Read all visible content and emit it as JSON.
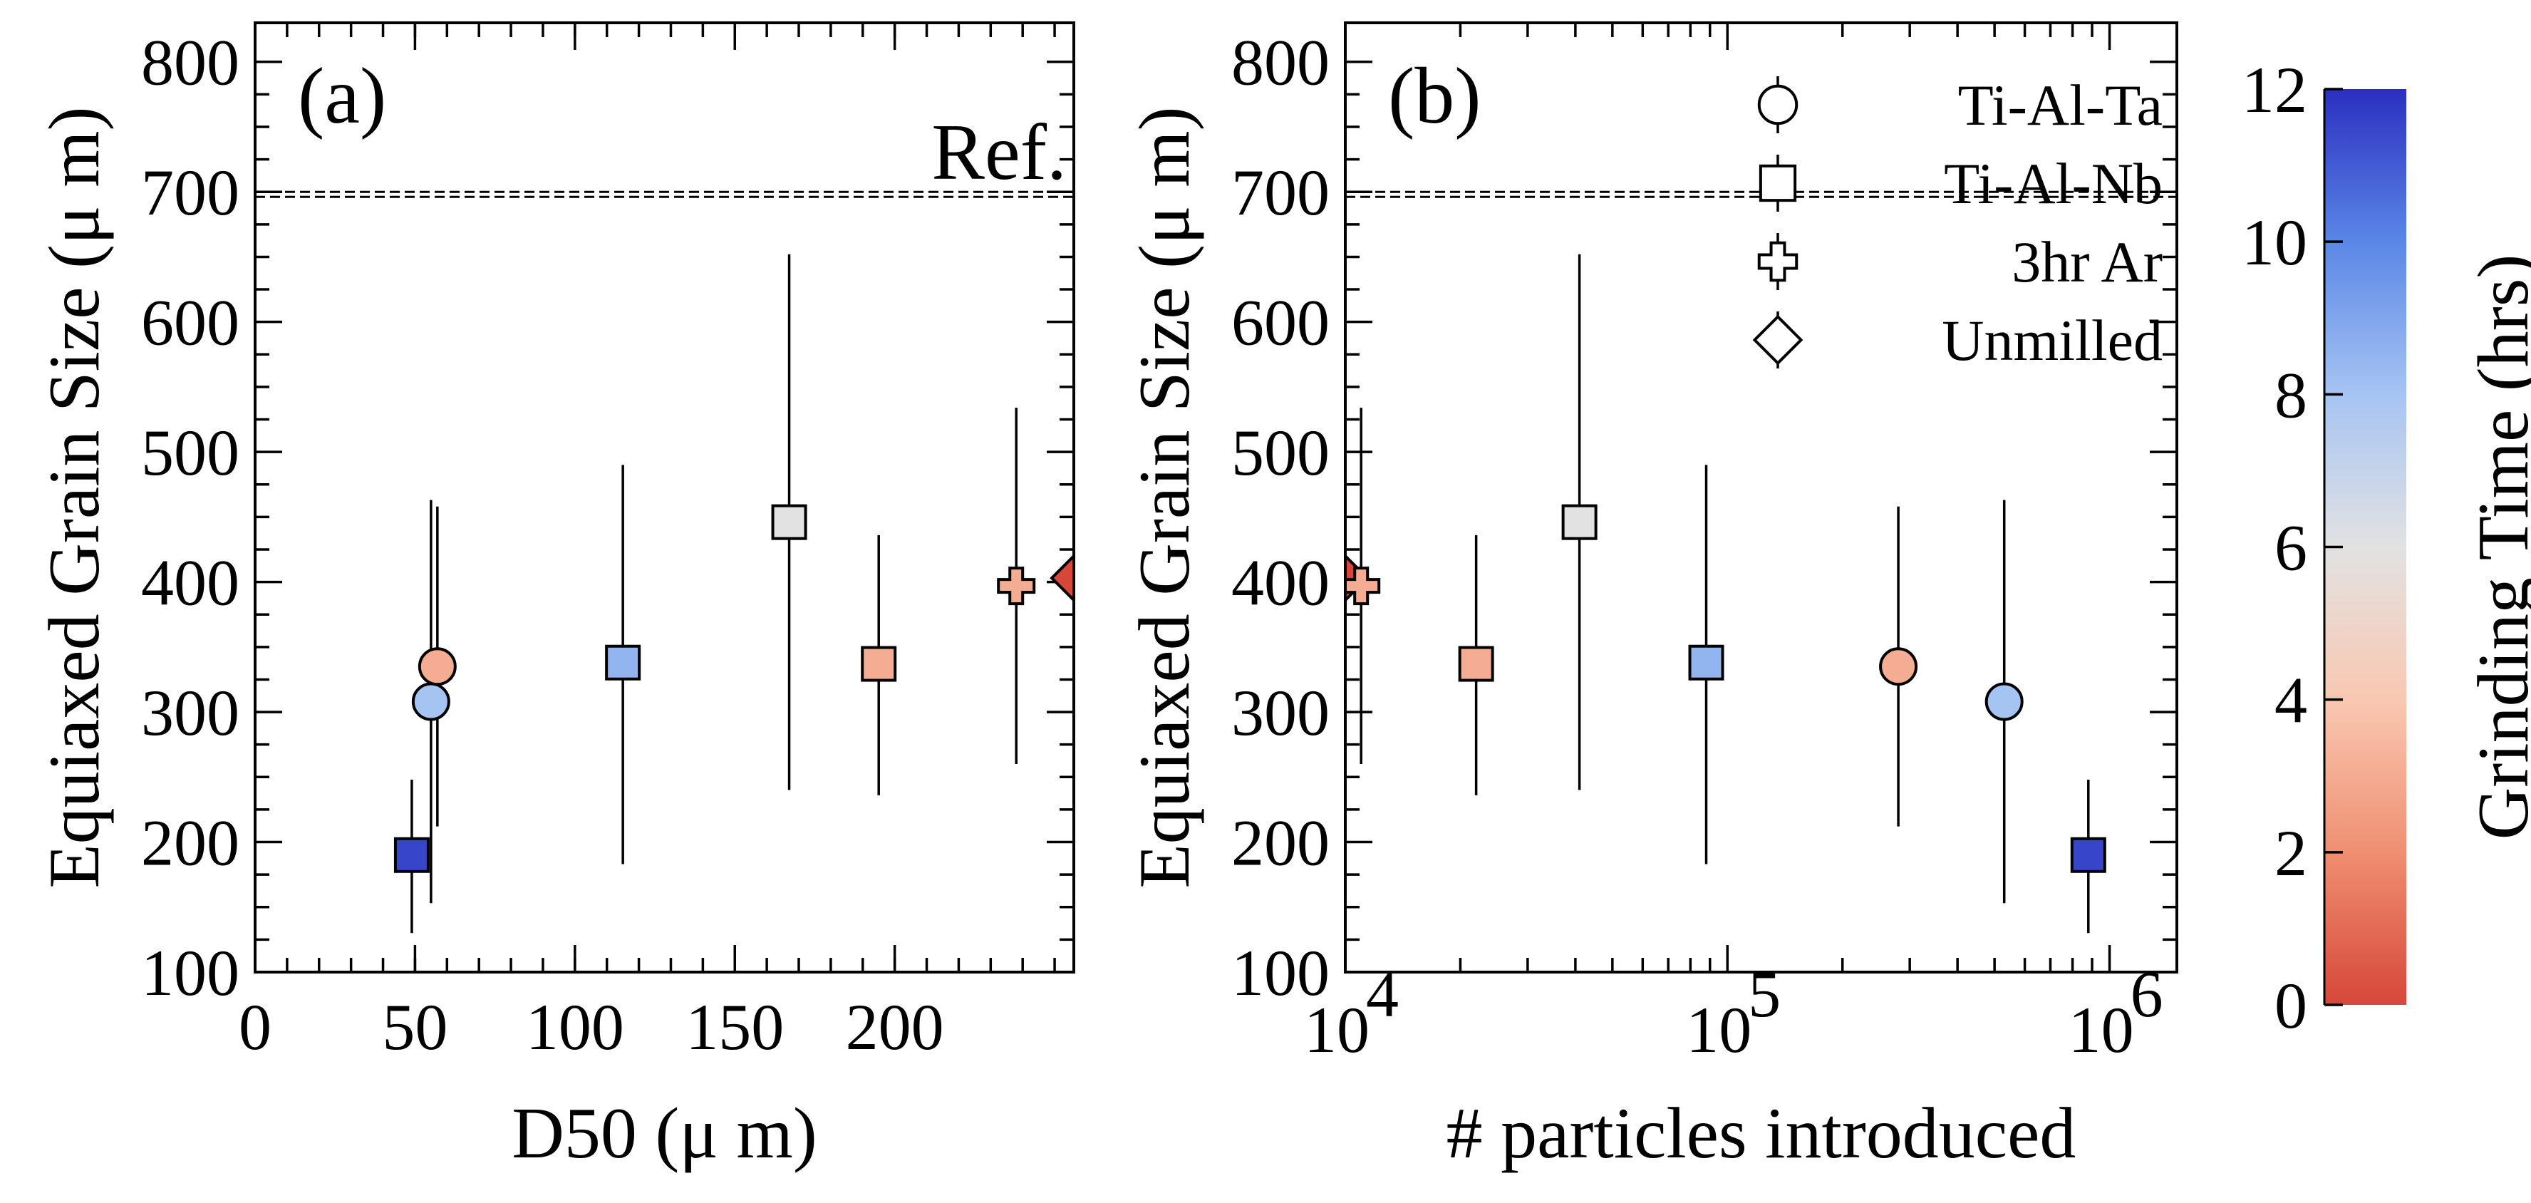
{
  "chart_data": [
    {
      "type": "scatter",
      "panel_label": "(a)",
      "xlabel": "D50 (μ m)",
      "ylabel": "Equiaxed Grain Size (μ m)",
      "xlim": [
        0,
        256
      ],
      "ylim": [
        100,
        830
      ],
      "x_ticks": [
        0,
        50,
        100,
        150,
        200
      ],
      "y_ticks": [
        100,
        200,
        300,
        400,
        500,
        600,
        700,
        800
      ],
      "reference": {
        "label": "Ref.",
        "y": 700
      },
      "points": [
        {
          "x": 49,
          "y": 190,
          "err_low": 130,
          "err_high": 248,
          "marker": "square",
          "grinding_time": 11.5
        },
        {
          "x": 55,
          "y": 308,
          "err_low": 153,
          "err_high": 463,
          "marker": "circle",
          "grinding_time": 8.0
        },
        {
          "x": 57,
          "y": 335,
          "err_low": 212,
          "err_high": 458,
          "marker": "circle",
          "grinding_time": 3.0
        },
        {
          "x": 115,
          "y": 338,
          "err_low": 183,
          "err_high": 490,
          "marker": "square",
          "grinding_time": 8.5
        },
        {
          "x": 167,
          "y": 446,
          "err_low": 240,
          "err_high": 652,
          "marker": "square",
          "grinding_time": 6.0
        },
        {
          "x": 195,
          "y": 337,
          "err_low": 236,
          "err_high": 436,
          "marker": "square",
          "grinding_time": 3.0
        },
        {
          "x": 238,
          "y": 397,
          "err_low": 260,
          "err_high": 534,
          "marker": "cross",
          "grinding_time": 3.0
        },
        {
          "x": 256,
          "y": 403,
          "err_low": 403,
          "err_high": 403,
          "marker": "diamond",
          "grinding_time": 0.0
        }
      ]
    },
    {
      "type": "scatter",
      "panel_label": "(b)",
      "xlabel": "# particles introduced",
      "ylabel": "Equiaxed Grain Size (μ m)",
      "x_scale": "log",
      "xlim": [
        10000,
        1500000
      ],
      "ylim": [
        100,
        830
      ],
      "x_ticks": [
        10000,
        100000,
        1000000
      ],
      "x_tick_labels": [
        {
          "base": "10",
          "exp": "4"
        },
        {
          "base": "10",
          "exp": "5"
        },
        {
          "base": "10",
          "exp": "6"
        }
      ],
      "y_ticks": [
        100,
        200,
        300,
        400,
        500,
        600,
        700,
        800
      ],
      "reference": {
        "y": 700
      },
      "legend": {
        "position": "top-right",
        "entries": [
          {
            "label": "Ti-Al-Ta",
            "marker": "circle"
          },
          {
            "label": "Ti-Al-Nb",
            "marker": "square"
          },
          {
            "label": "3hr Ar",
            "marker": "cross"
          },
          {
            "label": "Unmilled",
            "marker": "diamond"
          }
        ]
      },
      "points": [
        {
          "x": 10000,
          "y": 403,
          "err_low": 403,
          "err_high": 403,
          "marker": "diamond",
          "grinding_time": 0.0
        },
        {
          "x": 11000,
          "y": 397,
          "err_low": 260,
          "err_high": 534,
          "marker": "cross",
          "grinding_time": 3.0
        },
        {
          "x": 22000,
          "y": 337,
          "err_low": 236,
          "err_high": 436,
          "marker": "square",
          "grinding_time": 3.0
        },
        {
          "x": 41000,
          "y": 446,
          "err_low": 240,
          "err_high": 652,
          "marker": "square",
          "grinding_time": 6.0
        },
        {
          "x": 88000,
          "y": 338,
          "err_low": 183,
          "err_high": 490,
          "marker": "square",
          "grinding_time": 8.5
        },
        {
          "x": 280000,
          "y": 335,
          "err_low": 212,
          "err_high": 458,
          "marker": "circle",
          "grinding_time": 3.0
        },
        {
          "x": 530000,
          "y": 308,
          "err_low": 153,
          "err_high": 463,
          "marker": "circle",
          "grinding_time": 8.0
        },
        {
          "x": 880000,
          "y": 190,
          "err_low": 130,
          "err_high": 248,
          "marker": "square",
          "grinding_time": 11.5
        }
      ]
    }
  ],
  "colorbar": {
    "label": "Grinding Time (hrs)",
    "range": [
      0,
      12
    ],
    "ticks": [
      0,
      2,
      4,
      6,
      8,
      10,
      12
    ],
    "colors": [
      "#d6473a",
      "#ef8f72",
      "#f9c8b1",
      "#e2e2e2",
      "#a6c4f2",
      "#5a87e6",
      "#2b2fc0"
    ]
  }
}
